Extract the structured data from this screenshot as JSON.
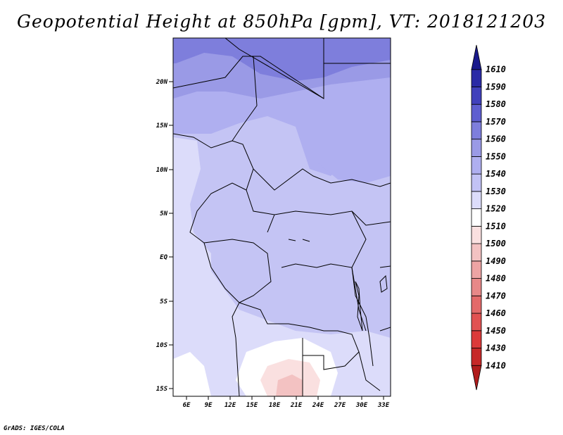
{
  "title": "Geopotential Height at 850hPa [gpm], VT: 2018121203",
  "credit": "GrADS: IGES/COLA",
  "map": {
    "lat_labels": [
      "20N",
      "15N",
      "10N",
      "5N",
      "EQ",
      "5S",
      "10S",
      "15S"
    ],
    "lon_labels": [
      "6E",
      "9E",
      "12E",
      "15E",
      "18E",
      "21E",
      "24E",
      "27E",
      "30E",
      "33E"
    ],
    "lat_range": [
      -16,
      24.5
    ],
    "lon_range": [
      3.8,
      33.5
    ]
  },
  "colorbar": {
    "labels": [
      "1410",
      "1430",
      "1450",
      "1460",
      "1470",
      "1480",
      "1490",
      "1500",
      "1510",
      "1520",
      "1530",
      "1540",
      "1550",
      "1560",
      "1570",
      "1580",
      "1590",
      "1610"
    ],
    "colors": [
      "#b01c1c",
      "#c62828",
      "#dc3a3a",
      "#e15252",
      "#e36a6a",
      "#e78888",
      "#eda4a4",
      "#f3c2c2",
      "#fae0e0",
      "#ffffff",
      "#dcdcfa",
      "#c2c2f5",
      "#afaff0",
      "#9a9ae6",
      "#7e7edc",
      "#5e5ed0",
      "#4040bc",
      "#2a2aa6",
      "#1a1a8c"
    ]
  }
}
